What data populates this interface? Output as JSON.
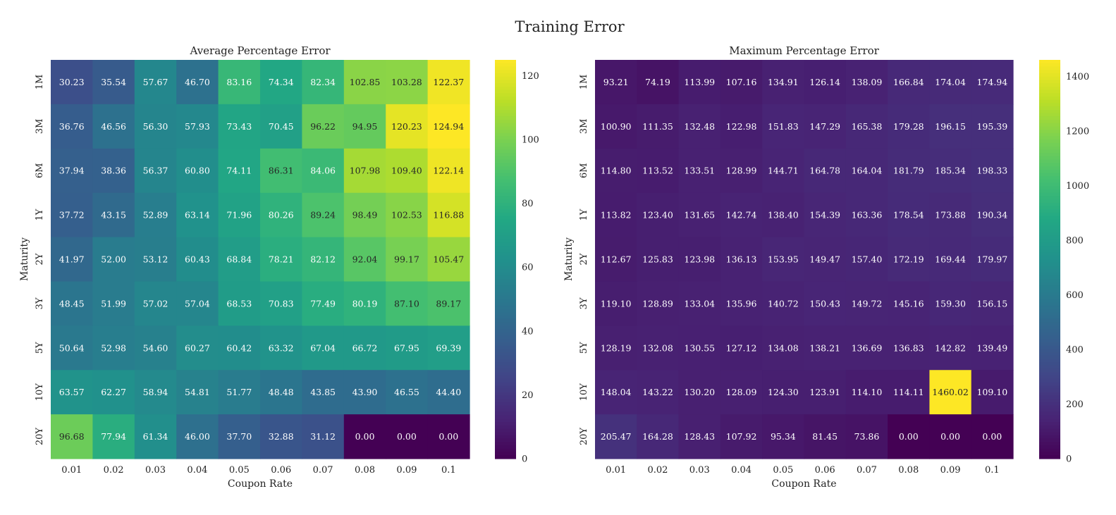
{
  "title": "Training Error",
  "chart_data": [
    {
      "type": "heatmap",
      "title": "Average Percentage Error",
      "xlabel": "Coupon Rate",
      "ylabel": "Maturity",
      "x": [
        "0.01",
        "0.02",
        "0.03",
        "0.04",
        "0.05",
        "0.06",
        "0.07",
        "0.08",
        "0.09",
        "0.1"
      ],
      "y": [
        "1M",
        "3M",
        "6M",
        "1Y",
        "2Y",
        "3Y",
        "5Y",
        "10Y",
        "20Y"
      ],
      "values": [
        [
          30.23,
          35.54,
          57.67,
          46.7,
          83.16,
          74.34,
          82.34,
          102.85,
          103.28,
          122.37
        ],
        [
          36.76,
          46.56,
          56.3,
          57.93,
          73.43,
          70.45,
          96.22,
          94.95,
          120.23,
          124.94
        ],
        [
          37.94,
          38.36,
          56.37,
          60.8,
          74.11,
          86.31,
          84.06,
          107.98,
          109.4,
          122.14
        ],
        [
          37.72,
          43.15,
          52.89,
          63.14,
          71.96,
          80.26,
          89.24,
          98.49,
          102.53,
          116.88
        ],
        [
          41.97,
          52.0,
          53.12,
          60.43,
          68.84,
          78.21,
          82.12,
          92.04,
          99.17,
          105.47
        ],
        [
          48.45,
          51.99,
          57.02,
          57.04,
          68.53,
          70.83,
          77.49,
          80.19,
          87.1,
          89.17
        ],
        [
          50.64,
          52.98,
          54.6,
          60.27,
          60.42,
          63.32,
          67.04,
          66.72,
          67.95,
          69.39
        ],
        [
          63.57,
          62.27,
          58.94,
          54.81,
          51.77,
          48.48,
          43.85,
          43.9,
          46.55,
          44.4
        ],
        [
          96.68,
          77.94,
          61.34,
          46.0,
          37.7,
          32.88,
          31.12,
          0.0,
          0.0,
          0.0
        ]
      ],
      "labels": [
        [
          "30.23",
          "35.54",
          "57.67",
          "46.70",
          "83.16",
          "74.34",
          "82.34",
          "102.85",
          "103.28",
          "122.37"
        ],
        [
          "36.76",
          "46.56",
          "56.30",
          "57.93",
          "73.43",
          "70.45",
          "96.22",
          "94.95",
          "120.23",
          "124.94"
        ],
        [
          "37.94",
          "38.36",
          "56.37",
          "60.80",
          "74.11",
          "86.31",
          "84.06",
          "107.98",
          "109.40",
          "122.14"
        ],
        [
          "37.72",
          "43.15",
          "52.89",
          "63.14",
          "71.96",
          "80.26",
          "89.24",
          "98.49",
          "102.53",
          "116.88"
        ],
        [
          "41.97",
          "52.00",
          "53.12",
          "60.43",
          "68.84",
          "78.21",
          "82.12",
          "92.04",
          "99.17",
          "105.47"
        ],
        [
          "48.45",
          "51.99",
          "57.02",
          "57.04",
          "68.53",
          "70.83",
          "77.49",
          "80.19",
          "87.10",
          "89.17"
        ],
        [
          "50.64",
          "52.98",
          "54.60",
          "60.27",
          "60.42",
          "63.32",
          "67.04",
          "66.72",
          "67.95",
          "69.39"
        ],
        [
          "63.57",
          "62.27",
          "58.94",
          "54.81",
          "51.77",
          "48.48",
          "43.85",
          "43.90",
          "46.55",
          "44.40"
        ],
        [
          "96.68",
          "77.94",
          "61.34",
          "46.00",
          "37.70",
          "32.88",
          "31.12",
          "0.00",
          "0.00",
          "0.00"
        ]
      ],
      "colormap": "viridis",
      "vmin": 0,
      "vmax": 124.94,
      "colorbar_ticks": [
        0,
        20,
        40,
        60,
        80,
        100,
        120
      ],
      "colorbar_tick_labels": [
        "0",
        "20",
        "40",
        "60",
        "80",
        "100",
        "120"
      ]
    },
    {
      "type": "heatmap",
      "title": "Maximum Percentage Error",
      "xlabel": "Coupon Rate",
      "ylabel": "Maturity",
      "x": [
        "0.01",
        "0.02",
        "0.03",
        "0.04",
        "0.05",
        "0.06",
        "0.07",
        "0.08",
        "0.09",
        "0.1"
      ],
      "y": [
        "1M",
        "3M",
        "6M",
        "1Y",
        "2Y",
        "3Y",
        "5Y",
        "10Y",
        "20Y"
      ],
      "values": [
        [
          93.21,
          74.19,
          113.99,
          107.16,
          134.91,
          126.14,
          138.09,
          166.84,
          174.04,
          174.94
        ],
        [
          100.9,
          111.35,
          132.48,
          122.98,
          151.83,
          147.29,
          165.38,
          179.28,
          196.15,
          195.39
        ],
        [
          114.8,
          113.52,
          133.51,
          128.99,
          144.71,
          164.78,
          164.04,
          181.79,
          185.34,
          198.33
        ],
        [
          113.82,
          123.4,
          131.65,
          142.74,
          138.4,
          154.39,
          163.36,
          178.54,
          173.88,
          190.34
        ],
        [
          112.67,
          125.83,
          123.98,
          136.13,
          153.95,
          149.47,
          157.4,
          172.19,
          169.44,
          179.97
        ],
        [
          119.1,
          128.89,
          133.04,
          135.96,
          140.72,
          150.43,
          149.72,
          145.16,
          159.3,
          156.15
        ],
        [
          128.19,
          132.08,
          130.55,
          127.12,
          134.08,
          138.21,
          136.69,
          136.83,
          142.82,
          139.49
        ],
        [
          148.04,
          143.22,
          130.2,
          128.09,
          124.3,
          123.91,
          114.1,
          114.11,
          1460.02,
          109.1
        ],
        [
          205.47,
          164.28,
          128.43,
          107.92,
          95.34,
          81.45,
          73.86,
          0.0,
          0.0,
          0.0
        ]
      ],
      "labels": [
        [
          "93.21",
          "74.19",
          "113.99",
          "107.16",
          "134.91",
          "126.14",
          "138.09",
          "166.84",
          "174.04",
          "174.94"
        ],
        [
          "100.90",
          "111.35",
          "132.48",
          "122.98",
          "151.83",
          "147.29",
          "165.38",
          "179.28",
          "196.15",
          "195.39"
        ],
        [
          "114.80",
          "113.52",
          "133.51",
          "128.99",
          "144.71",
          "164.78",
          "164.04",
          "181.79",
          "185.34",
          "198.33"
        ],
        [
          "113.82",
          "123.40",
          "131.65",
          "142.74",
          "138.40",
          "154.39",
          "163.36",
          "178.54",
          "173.88",
          "190.34"
        ],
        [
          "112.67",
          "125.83",
          "123.98",
          "136.13",
          "153.95",
          "149.47",
          "157.40",
          "172.19",
          "169.44",
          "179.97"
        ],
        [
          "119.10",
          "128.89",
          "133.04",
          "135.96",
          "140.72",
          "150.43",
          "149.72",
          "145.16",
          "159.30",
          "156.15"
        ],
        [
          "128.19",
          "132.08",
          "130.55",
          "127.12",
          "134.08",
          "138.21",
          "136.69",
          "136.83",
          "142.82",
          "139.49"
        ],
        [
          "148.04",
          "143.22",
          "130.20",
          "128.09",
          "124.30",
          "123.91",
          "114.10",
          "114.11",
          "1460.02",
          "109.10"
        ],
        [
          "205.47",
          "164.28",
          "128.43",
          "107.92",
          "95.34",
          "81.45",
          "73.86",
          "0.00",
          "0.00",
          "0.00"
        ]
      ],
      "colormap": "viridis",
      "vmin": 0,
      "vmax": 1460.02,
      "colorbar_ticks": [
        0,
        200,
        400,
        600,
        800,
        1000,
        1200,
        1400
      ],
      "colorbar_tick_labels": [
        "0",
        "200",
        "400",
        "600",
        "800",
        "1000",
        "1200",
        "1400"
      ]
    }
  ]
}
